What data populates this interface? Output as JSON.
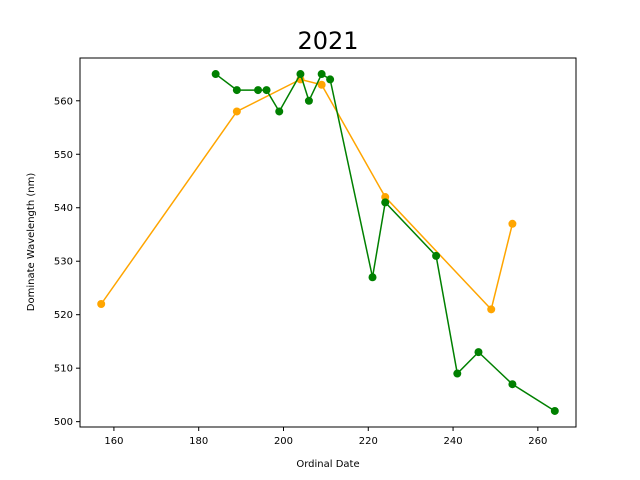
{
  "chart_data": {
    "type": "line",
    "title": "2021",
    "xlabel": "Ordinal Date",
    "ylabel": "Dominate Wavelength (nm)",
    "xlim": [
      152,
      269
    ],
    "ylim": [
      499,
      568
    ],
    "xticks": [
      160,
      180,
      200,
      220,
      240,
      260
    ],
    "yticks": [
      500,
      510,
      520,
      530,
      540,
      550,
      560
    ],
    "grid": false,
    "series": [
      {
        "color": "#ffa500",
        "points": [
          [
            157,
            522
          ],
          [
            189,
            558
          ],
          [
            204,
            564
          ],
          [
            209,
            563
          ],
          [
            224,
            542
          ],
          [
            249,
            521
          ],
          [
            254,
            537
          ]
        ]
      },
      {
        "color": "#008000",
        "points": [
          [
            184,
            565
          ],
          [
            189,
            562
          ],
          [
            194,
            562
          ],
          [
            196,
            562
          ],
          [
            199,
            558
          ],
          [
            204,
            565
          ],
          [
            206,
            560
          ],
          [
            209,
            565
          ],
          [
            211,
            564
          ],
          [
            221,
            527
          ],
          [
            224,
            541
          ],
          [
            236,
            531
          ],
          [
            241,
            509
          ],
          [
            246,
            513
          ],
          [
            254,
            507
          ],
          [
            264,
            502
          ]
        ]
      }
    ]
  }
}
